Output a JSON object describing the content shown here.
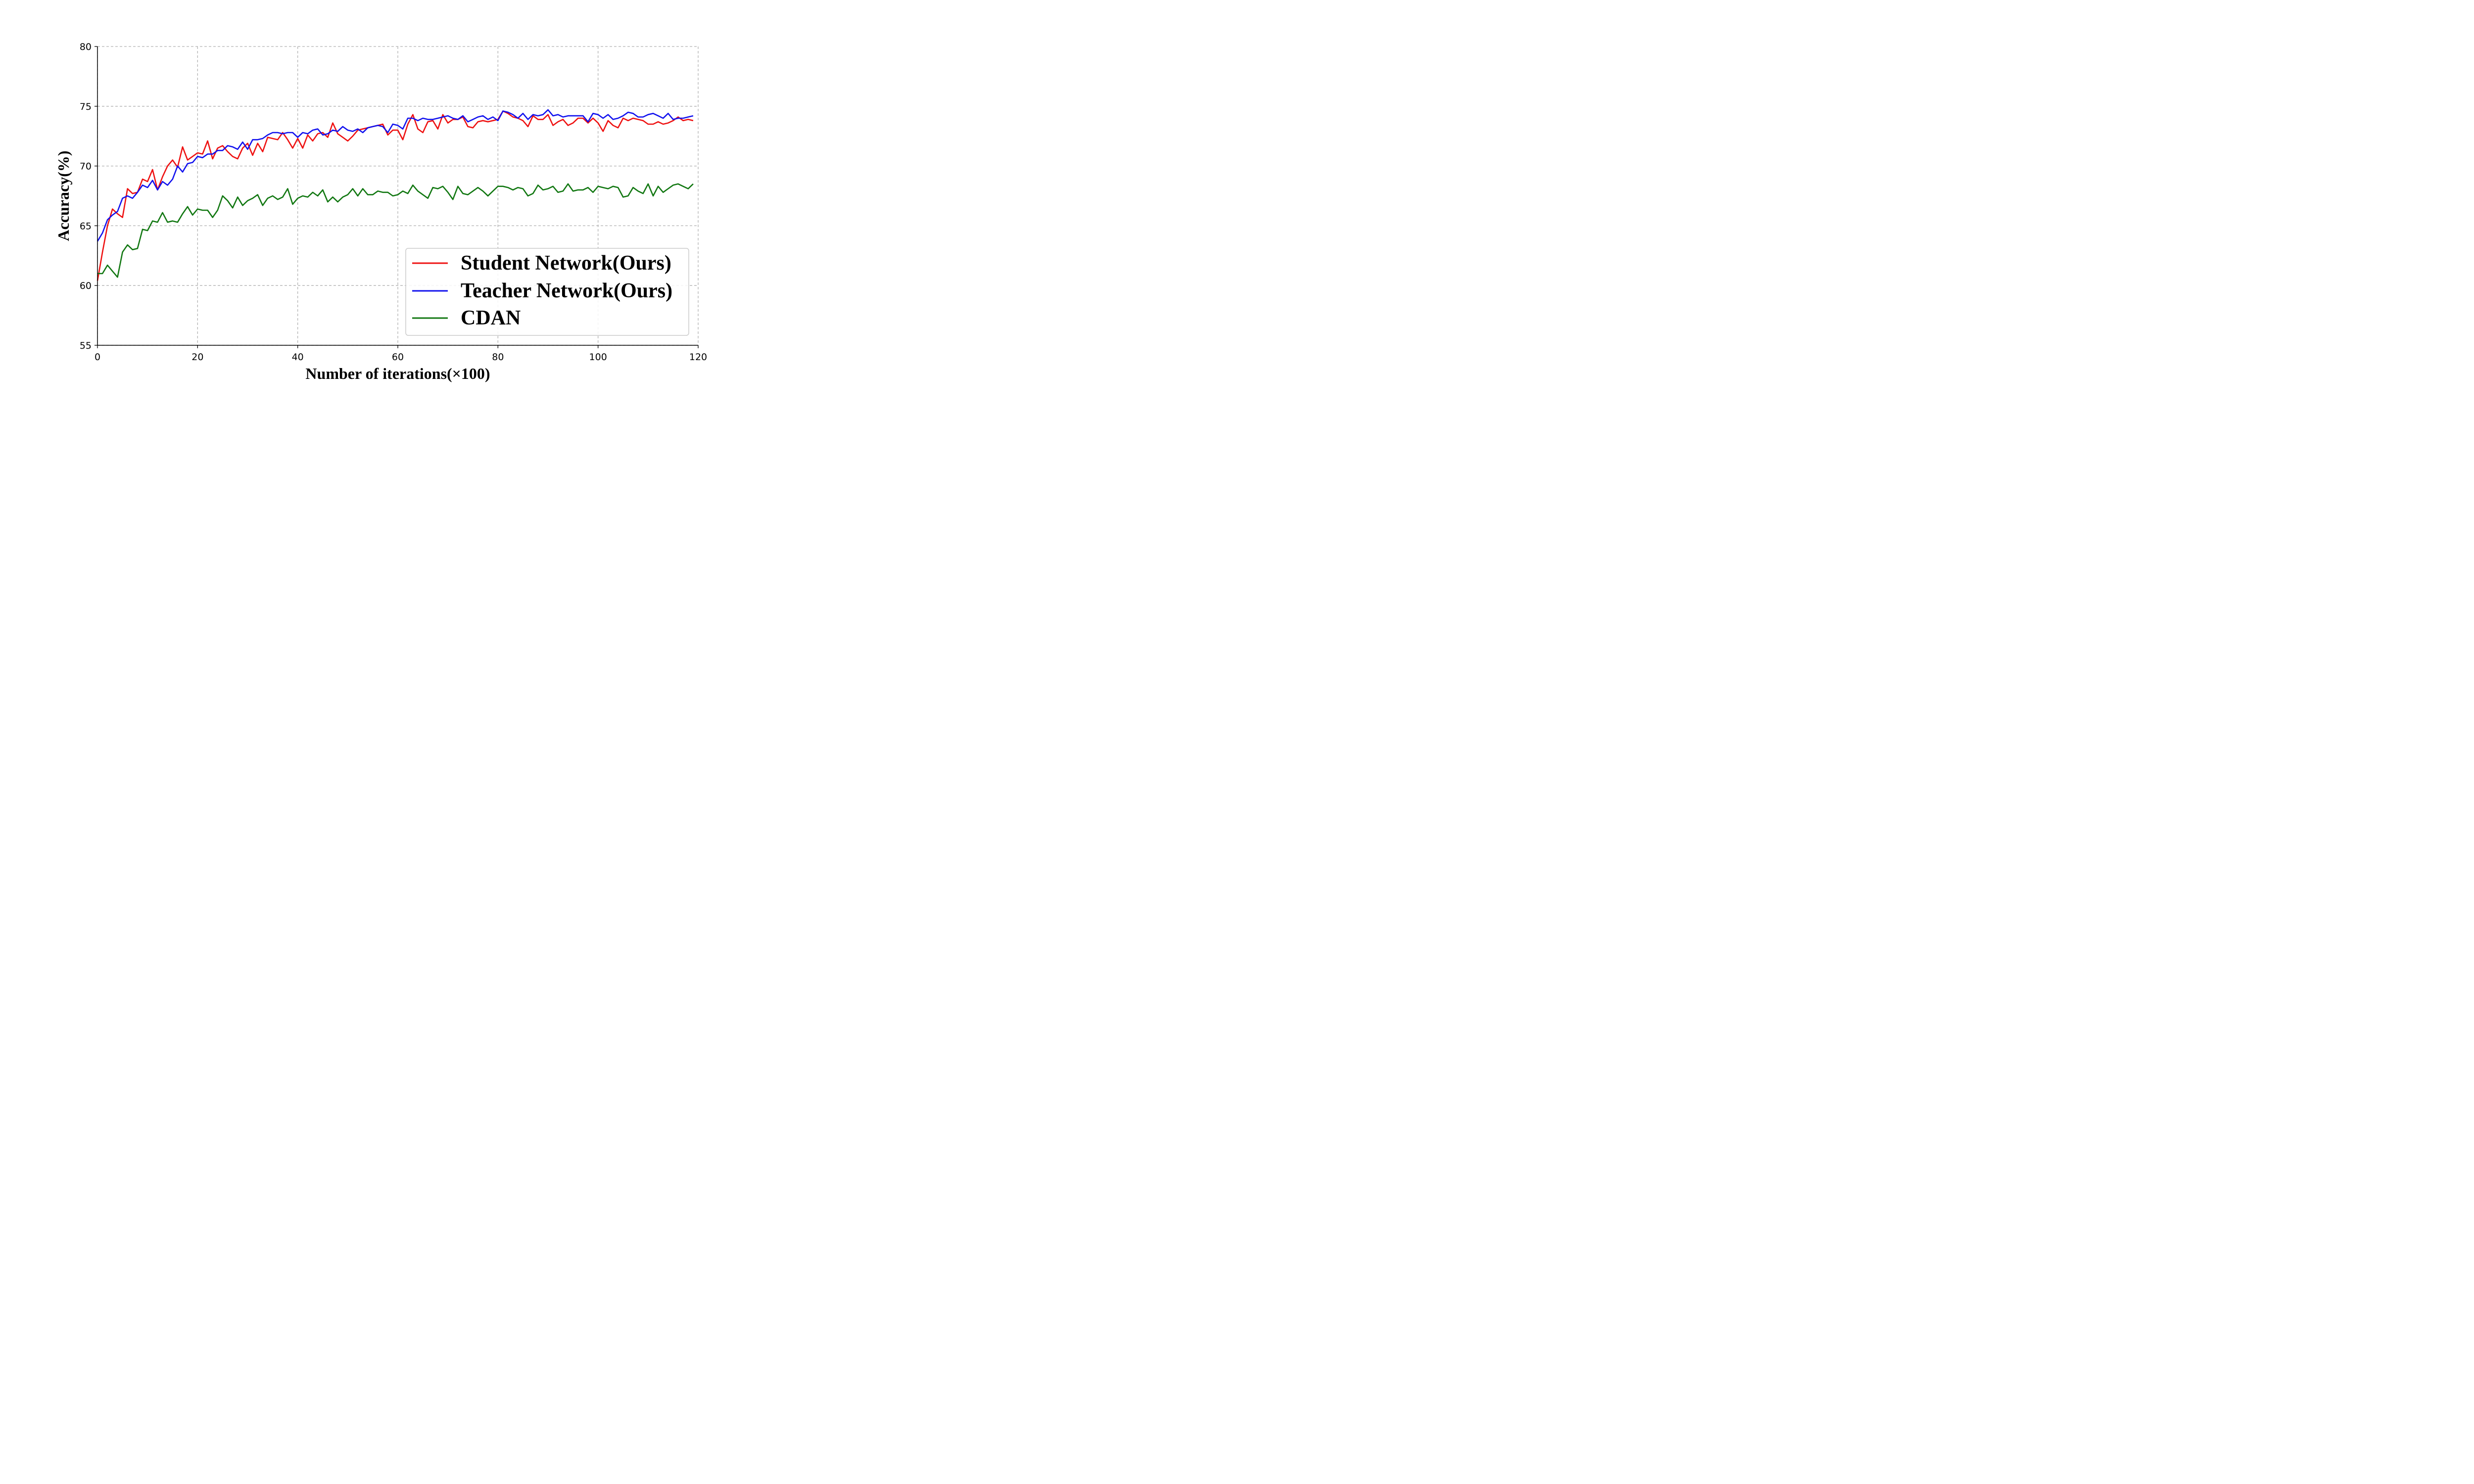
{
  "chart_data": {
    "type": "line",
    "xlabel": "Number of iterations(×100)",
    "ylabel": "Accuracy(%)",
    "xlim": [
      0,
      120
    ],
    "ylim": [
      55,
      80
    ],
    "xticks": [
      0,
      20,
      40,
      60,
      80,
      100,
      120
    ],
    "yticks": [
      55,
      60,
      65,
      70,
      75,
      80
    ],
    "grid": true,
    "legend_position": "lower-right",
    "series": [
      {
        "name": "Student Network(Ours)",
        "color": "#ee1111",
        "x": [
          0,
          1,
          2,
          3,
          4,
          5,
          6,
          7,
          8,
          9,
          10,
          11,
          12,
          13,
          14,
          15,
          16,
          17,
          18,
          19,
          20,
          21,
          22,
          23,
          24,
          25,
          26,
          27,
          28,
          29,
          30,
          31,
          32,
          33,
          34,
          35,
          36,
          37,
          38,
          39,
          40,
          41,
          42,
          43,
          44,
          45,
          46,
          47,
          48,
          49,
          50,
          51,
          52,
          53,
          54,
          55,
          56,
          57,
          58,
          59,
          60,
          61,
          62,
          63,
          64,
          65,
          66,
          67,
          68,
          69,
          70,
          71,
          72,
          73,
          74,
          75,
          76,
          77,
          78,
          79,
          80,
          81,
          82,
          83,
          84,
          85,
          86,
          87,
          88,
          89,
          90,
          91,
          92,
          93,
          94,
          95,
          96,
          97,
          98,
          99,
          100,
          101,
          102,
          103,
          104,
          105,
          106,
          107,
          108,
          109,
          110,
          111,
          112,
          113,
          114,
          115,
          116,
          117,
          118,
          119
        ],
        "y": [
          60.4,
          62.8,
          65.0,
          66.4,
          66.0,
          65.7,
          68.1,
          67.7,
          67.8,
          68.9,
          68.7,
          69.7,
          68.0,
          69.1,
          70.0,
          70.5,
          69.9,
          71.6,
          70.5,
          70.8,
          71.1,
          71.0,
          72.1,
          70.6,
          71.5,
          71.7,
          71.2,
          70.8,
          70.6,
          71.5,
          71.9,
          70.9,
          71.9,
          71.2,
          72.4,
          72.3,
          72.2,
          72.8,
          72.2,
          71.5,
          72.3,
          71.5,
          72.6,
          72.1,
          72.7,
          72.8,
          72.4,
          73.6,
          72.7,
          72.4,
          72.1,
          72.5,
          73.0,
          73.1,
          73.2,
          73.3,
          73.4,
          73.5,
          72.6,
          73.0,
          73.0,
          72.2,
          73.5,
          74.3,
          73.1,
          72.8,
          73.7,
          73.8,
          73.1,
          74.3,
          73.6,
          73.9,
          73.9,
          74.1,
          73.3,
          73.2,
          73.7,
          73.8,
          73.7,
          73.8,
          73.9,
          74.6,
          74.4,
          74.1,
          74.0,
          73.8,
          73.3,
          74.2,
          73.9,
          73.9,
          74.3,
          73.4,
          73.7,
          73.9,
          73.4,
          73.6,
          74.0,
          74.0,
          73.6,
          74.0,
          73.6,
          72.9,
          73.8,
          73.4,
          73.2,
          74.0,
          73.8,
          74.0,
          73.9,
          73.8,
          73.5,
          73.5,
          73.7,
          73.5,
          73.6,
          73.8,
          74.1,
          73.8,
          73.9,
          73.8
        ]
      },
      {
        "name": "Teacher Network(Ours)",
        "color": "#1111ee",
        "x": [
          0,
          1,
          2,
          3,
          4,
          5,
          6,
          7,
          8,
          9,
          10,
          11,
          12,
          13,
          14,
          15,
          16,
          17,
          18,
          19,
          20,
          21,
          22,
          23,
          24,
          25,
          26,
          27,
          28,
          29,
          30,
          31,
          32,
          33,
          34,
          35,
          36,
          37,
          38,
          39,
          40,
          41,
          42,
          43,
          44,
          45,
          46,
          47,
          48,
          49,
          50,
          51,
          52,
          53,
          54,
          55,
          56,
          57,
          58,
          59,
          60,
          61,
          62,
          63,
          64,
          65,
          66,
          67,
          68,
          69,
          70,
          71,
          72,
          73,
          74,
          75,
          76,
          77,
          78,
          79,
          80,
          81,
          82,
          83,
          84,
          85,
          86,
          87,
          88,
          89,
          90,
          91,
          92,
          93,
          94,
          95,
          96,
          97,
          98,
          99,
          100,
          101,
          102,
          103,
          104,
          105,
          106,
          107,
          108,
          109,
          110,
          111,
          112,
          113,
          114,
          115,
          116,
          117,
          118,
          119
        ],
        "y": [
          63.7,
          64.4,
          65.5,
          65.9,
          66.2,
          67.3,
          67.5,
          67.3,
          67.8,
          68.4,
          68.2,
          68.8,
          68.0,
          68.7,
          68.4,
          68.9,
          70.0,
          69.5,
          70.2,
          70.3,
          70.8,
          70.7,
          71.0,
          71.0,
          71.3,
          71.3,
          71.7,
          71.6,
          71.4,
          72.0,
          71.4,
          72.2,
          72.2,
          72.3,
          72.6,
          72.8,
          72.8,
          72.7,
          72.8,
          72.8,
          72.4,
          72.8,
          72.7,
          73.0,
          73.1,
          72.6,
          72.7,
          73.0,
          72.9,
          73.3,
          73.0,
          72.9,
          73.1,
          72.8,
          73.2,
          73.3,
          73.4,
          73.3,
          72.8,
          73.5,
          73.4,
          73.1,
          74.0,
          74.0,
          73.8,
          74.0,
          73.9,
          73.9,
          74.0,
          74.1,
          74.2,
          74.0,
          73.9,
          74.2,
          73.7,
          73.9,
          74.1,
          74.2,
          73.9,
          74.1,
          73.8,
          74.6,
          74.5,
          74.3,
          74.0,
          74.4,
          73.9,
          74.3,
          74.2,
          74.3,
          74.7,
          74.2,
          74.3,
          74.1,
          74.2,
          74.2,
          74.2,
          74.2,
          73.7,
          74.4,
          74.3,
          74.0,
          74.3,
          73.9,
          74.0,
          74.2,
          74.5,
          74.4,
          74.1,
          74.1,
          74.3,
          74.4,
          74.2,
          74.0,
          74.4,
          73.9,
          74.0,
          74.0,
          74.1,
          74.2
        ]
      },
      {
        "name": "CDAN",
        "color": "#117711",
        "x": [
          0,
          1,
          2,
          3,
          4,
          5,
          6,
          7,
          8,
          9,
          10,
          11,
          12,
          13,
          14,
          15,
          16,
          17,
          18,
          19,
          20,
          21,
          22,
          23,
          24,
          25,
          26,
          27,
          28,
          29,
          30,
          31,
          32,
          33,
          34,
          35,
          36,
          37,
          38,
          39,
          40,
          41,
          42,
          43,
          44,
          45,
          46,
          47,
          48,
          49,
          50,
          51,
          52,
          53,
          54,
          55,
          56,
          57,
          58,
          59,
          60,
          61,
          62,
          63,
          64,
          65,
          66,
          67,
          68,
          69,
          70,
          71,
          72,
          73,
          74,
          75,
          76,
          77,
          78,
          79,
          80,
          81,
          82,
          83,
          84,
          85,
          86,
          87,
          88,
          89,
          90,
          91,
          92,
          93,
          94,
          95,
          96,
          97,
          98,
          99,
          100,
          101,
          102,
          103,
          104,
          105,
          106,
          107,
          108,
          109,
          110,
          111,
          112,
          113,
          114,
          115,
          116,
          117,
          118,
          119
        ],
        "y": [
          61.0,
          61.0,
          61.7,
          61.2,
          60.7,
          62.8,
          63.4,
          63.0,
          63.1,
          64.7,
          64.6,
          65.4,
          65.3,
          66.1,
          65.3,
          65.4,
          65.3,
          66.0,
          66.6,
          65.9,
          66.4,
          66.3,
          66.3,
          65.7,
          66.3,
          67.5,
          67.1,
          66.5,
          67.4,
          66.7,
          67.1,
          67.3,
          67.6,
          66.7,
          67.3,
          67.5,
          67.2,
          67.4,
          68.1,
          66.8,
          67.3,
          67.5,
          67.4,
          67.8,
          67.5,
          68.0,
          67.0,
          67.4,
          67.0,
          67.4,
          67.6,
          68.1,
          67.5,
          68.1,
          67.6,
          67.6,
          67.9,
          67.8,
          67.8,
          67.5,
          67.6,
          67.9,
          67.7,
          68.4,
          67.9,
          67.6,
          67.3,
          68.2,
          68.1,
          68.3,
          67.8,
          67.2,
          68.3,
          67.7,
          67.6,
          67.9,
          68.2,
          67.9,
          67.5,
          67.9,
          68.3,
          68.3,
          68.2,
          68.0,
          68.2,
          68.1,
          67.5,
          67.7,
          68.4,
          68.0,
          68.1,
          68.3,
          67.8,
          67.9,
          68.5,
          67.9,
          68.0,
          68.0,
          68.2,
          67.8,
          68.3,
          68.2,
          68.1,
          68.3,
          68.2,
          67.4,
          67.5,
          68.2,
          67.9,
          67.7,
          68.5,
          67.5,
          68.3,
          67.8,
          68.1,
          68.4,
          68.5,
          68.3,
          68.1,
          68.5
        ]
      }
    ]
  }
}
